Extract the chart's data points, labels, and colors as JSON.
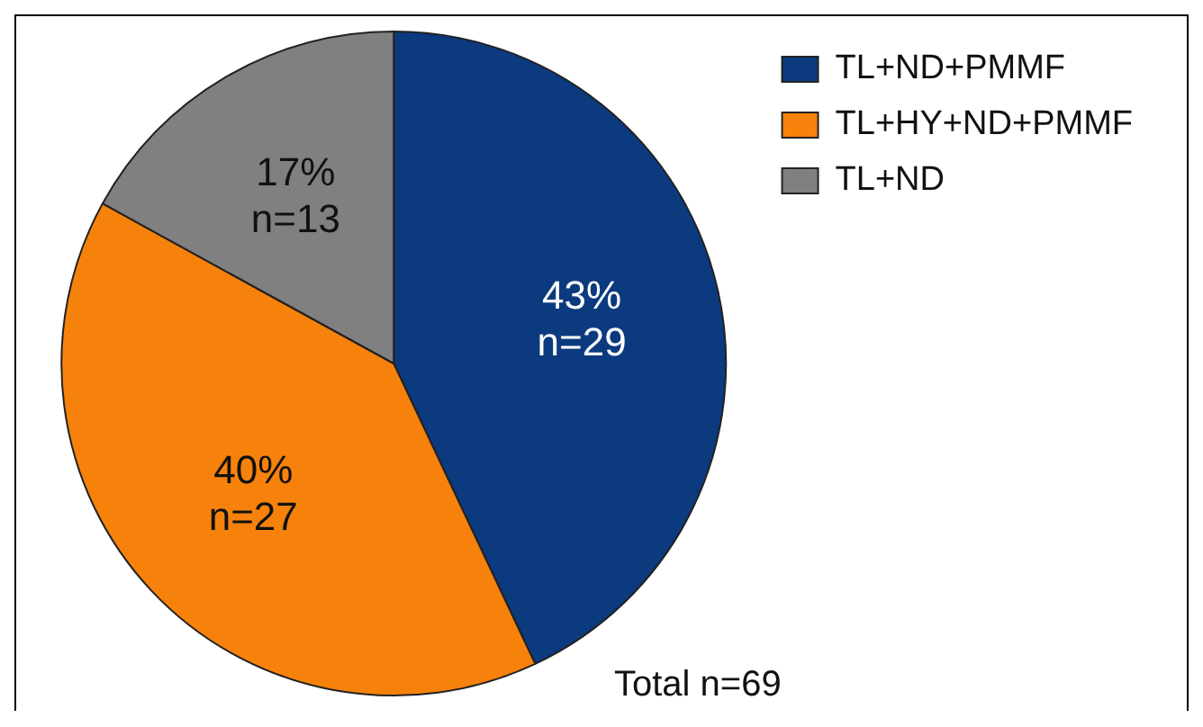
{
  "chart_data": {
    "type": "pie",
    "categories": [
      "TL+ND+PMMF",
      "TL+HY+ND+PMMF",
      "TL+ND"
    ],
    "values": [
      43,
      40,
      17
    ],
    "colors": [
      "#0b3a7f",
      "#f7820b",
      "#808080"
    ],
    "value_labels": [
      "43%\nn=29",
      "40%\nn=27",
      "17%\nn=13"
    ],
    "legend": "top right",
    "annotations": [
      {
        "text": "Total n=69"
      }
    ]
  }
}
